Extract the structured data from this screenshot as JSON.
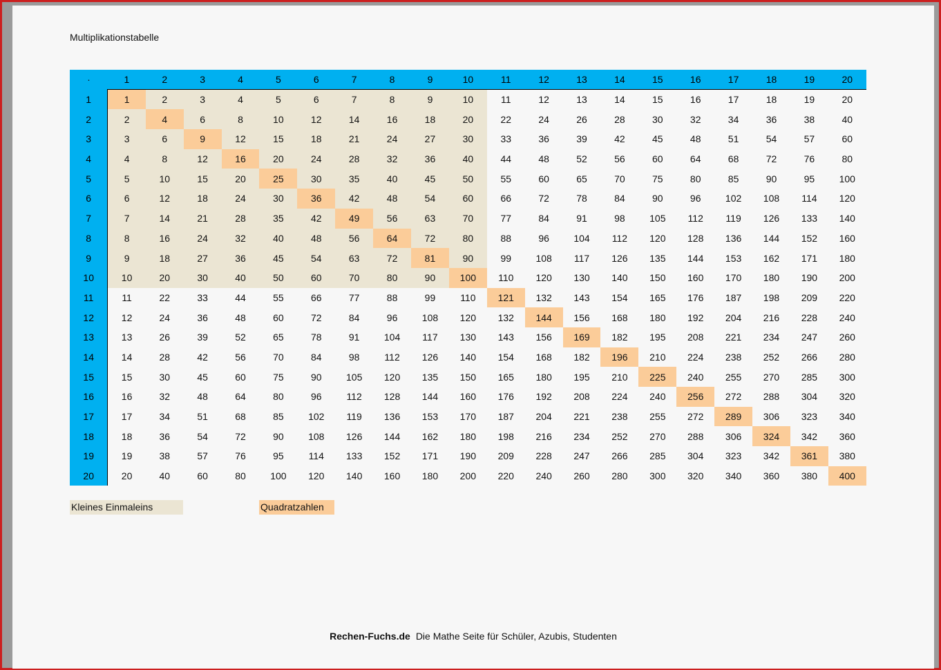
{
  "document": {
    "title": "Multiplikationstabelle"
  },
  "table": {
    "corner_symbol": "·",
    "size": 20,
    "small_table_limit": 10
  },
  "legend": {
    "small_label": "Kleines Einmaleins",
    "square_label": "Quadratzahlen"
  },
  "footer": {
    "brand": "Rechen-Fuchs.de",
    "tagline": "Die Mathe Seite für Schüler, Azubis, Studenten"
  },
  "colors": {
    "header": "#00b0f0",
    "small_table": "#ebe5d3",
    "squares": "#fbcc99",
    "frame": "#cc1f1f"
  }
}
